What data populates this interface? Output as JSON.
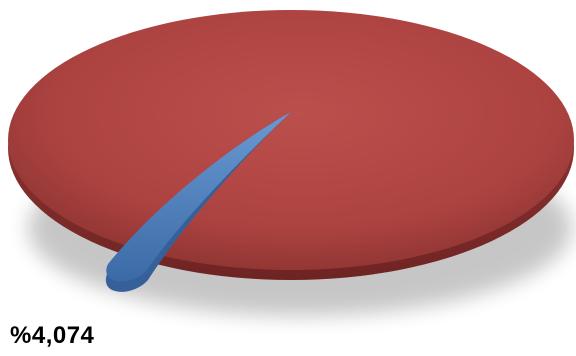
{
  "chart_data": {
    "type": "pie",
    "style": "3d",
    "labels": [
      "",
      ""
    ],
    "values": [
      95.926,
      4.074
    ],
    "colors": [
      "#b84a48",
      "#4f81bd"
    ],
    "data_labels": [
      "",
      "%4,074"
    ],
    "legend": false
  }
}
